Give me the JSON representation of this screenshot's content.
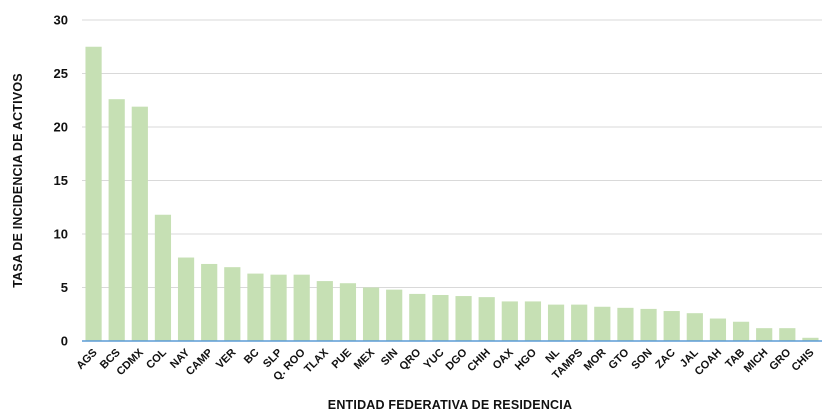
{
  "chart_data": {
    "type": "bar",
    "title": "",
    "xlabel": "ENTIDAD FEDERATIVA DE RESIDENCIA",
    "ylabel": "TASA DE INCIDENCIA DE ACTIVOS",
    "ylim": [
      0,
      30
    ],
    "yticks": [
      0,
      5,
      10,
      15,
      20,
      25,
      30
    ],
    "grid": true,
    "legend": "none",
    "colors": {
      "bar": "#c6e0b4",
      "grid": "#d9d9d9",
      "baseline": "#5b9bd5"
    },
    "categories": [
      "AGS",
      "BCS",
      "CDMX",
      "COL",
      "NAY",
      "CAMP",
      "VER",
      "BC",
      "SLP",
      "Q. ROO",
      "TLAX",
      "PUE",
      "MEX",
      "SIN",
      "QRO",
      "YUC",
      "DGO",
      "CHIH",
      "OAX",
      "HGO",
      "NL",
      "TAMPS",
      "MOR",
      "GTO",
      "SON",
      "ZAC",
      "JAL",
      "COAH",
      "TAB",
      "MICH",
      "GRO",
      "CHIS"
    ],
    "values": [
      27.5,
      22.6,
      21.9,
      11.8,
      7.8,
      7.2,
      6.9,
      6.3,
      6.2,
      6.2,
      5.6,
      5.4,
      5.0,
      4.8,
      4.4,
      4.3,
      4.2,
      4.1,
      3.7,
      3.7,
      3.4,
      3.4,
      3.2,
      3.1,
      3.0,
      2.8,
      2.6,
      2.1,
      1.8,
      1.2,
      1.2,
      0.3
    ]
  }
}
